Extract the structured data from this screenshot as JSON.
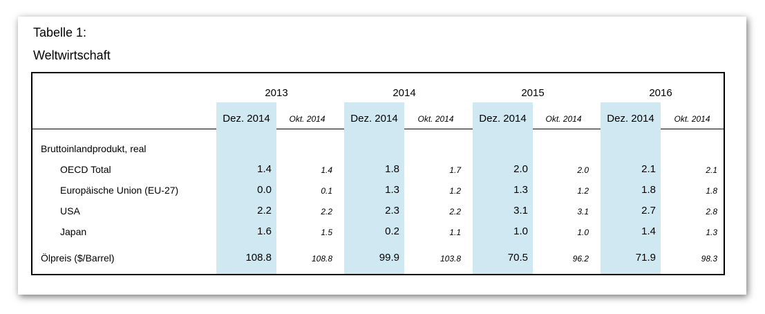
{
  "caption": {
    "line1": "Tabelle 1:",
    "line2": "Weltwirtschaft"
  },
  "table": {
    "years": [
      "2013",
      "2014",
      "2015",
      "2016"
    ],
    "col_dez": "Dez. 2014",
    "col_okt": "Okt. 2014",
    "section_label": "Bruttoinlandprodukt, real",
    "rows": [
      {
        "label": "OECD Total",
        "dez": [
          "1.4",
          "1.8",
          "2.0",
          "2.1"
        ],
        "okt": [
          "1.4",
          "1.7",
          "2.0",
          "2.1"
        ]
      },
      {
        "label": "Europäische Union (EU-27)",
        "dez": [
          "0.0",
          "1.3",
          "1.3",
          "1.8"
        ],
        "okt": [
          "0.1",
          "1.2",
          "1.2",
          "1.8"
        ]
      },
      {
        "label": "USA",
        "dez": [
          "2.2",
          "2.3",
          "3.1",
          "2.7"
        ],
        "okt": [
          "2.2",
          "2.2",
          "3.1",
          "2.8"
        ]
      },
      {
        "label": "Japan",
        "dez": [
          "1.6",
          "0.2",
          "1.0",
          "1.4"
        ],
        "okt": [
          "1.5",
          "1.1",
          "1.0",
          "1.3"
        ]
      },
      {
        "label": "Ölpreis ($/Barrel)",
        "dez": [
          "108.8",
          "99.9",
          "70.5",
          "71.9"
        ],
        "okt": [
          "108.8",
          "103.8",
          "96.2",
          "98.3"
        ]
      }
    ]
  }
}
